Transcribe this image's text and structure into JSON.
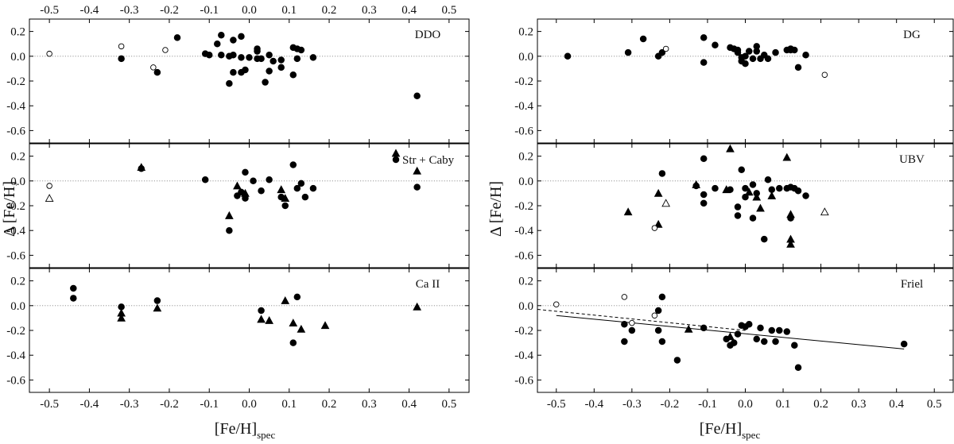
{
  "chart_data": {
    "type": "scatter",
    "title": "",
    "xlabel": "[Fe/H]",
    "xlabel_sub": "spec",
    "ylabel": "Δ [Fe/H]",
    "xlim": [
      -0.55,
      0.55
    ],
    "ylim": [
      -0.7,
      0.3
    ],
    "xticks": [
      -0.5,
      -0.4,
      -0.3,
      -0.2,
      -0.1,
      0.0,
      0.1,
      0.2,
      0.3,
      0.4,
      0.5
    ],
    "xtick_labels": [
      "-0.5",
      "-0.4",
      "-0.3",
      "-0.2",
      "-0.1",
      "0.0",
      "0.1",
      "0.2",
      "0.3",
      "0.4",
      "0.5"
    ],
    "yticks": [
      -0.6,
      -0.4,
      -0.2,
      0.0,
      0.2
    ],
    "ytick_labels": [
      "-0.6",
      "-0.4",
      "-0.2",
      "0.0",
      "0.2"
    ],
    "legend": {
      "triangle": "",
      "circle": "Str + Caby"
    },
    "panels": [
      {
        "id": "ddo",
        "label": "DDO",
        "column": "left",
        "row": 0,
        "series": [
          {
            "name": "filled-circle",
            "marker": "circle",
            "filled": true,
            "points": [
              [
                -0.32,
                -0.02
              ],
              [
                -0.23,
                -0.13
              ],
              [
                -0.18,
                0.15
              ],
              [
                -0.11,
                0.02
              ],
              [
                -0.1,
                0.01
              ],
              [
                -0.08,
                0.1
              ],
              [
                -0.07,
                0.17
              ],
              [
                -0.07,
                0.01
              ],
              [
                -0.05,
                0.0
              ],
              [
                -0.05,
                -0.22
              ],
              [
                -0.04,
                0.13
              ],
              [
                -0.04,
                0.01
              ],
              [
                -0.04,
                -0.13
              ],
              [
                -0.02,
                0.16
              ],
              [
                -0.02,
                -0.13
              ],
              [
                -0.02,
                -0.01
              ],
              [
                -0.01,
                -0.11
              ],
              [
                0.0,
                -0.01
              ],
              [
                0.02,
                0.06
              ],
              [
                0.02,
                0.04
              ],
              [
                0.02,
                -0.02
              ],
              [
                0.03,
                -0.02
              ],
              [
                0.04,
                -0.21
              ],
              [
                0.05,
                0.01
              ],
              [
                0.05,
                -0.12
              ],
              [
                0.06,
                -0.04
              ],
              [
                0.08,
                -0.03
              ],
              [
                0.08,
                -0.09
              ],
              [
                0.11,
                0.07
              ],
              [
                0.11,
                -0.15
              ],
              [
                0.12,
                0.06
              ],
              [
                0.12,
                -0.02
              ],
              [
                0.13,
                0.05
              ],
              [
                0.16,
                -0.01
              ],
              [
                0.42,
                -0.32
              ]
            ]
          },
          {
            "name": "open-circle",
            "marker": "circle",
            "filled": false,
            "points": [
              [
                -0.5,
                0.02
              ],
              [
                -0.32,
                0.08
              ],
              [
                -0.24,
                -0.09
              ],
              [
                -0.21,
                0.05
              ]
            ]
          }
        ]
      },
      {
        "id": "str-caby",
        "label": "Str + Caby",
        "column": "left",
        "row": 1,
        "series": [
          {
            "name": "filled-circle",
            "marker": "circle",
            "filled": true,
            "points": [
              [
                -0.27,
                0.1
              ],
              [
                -0.11,
                0.01
              ],
              [
                -0.05,
                -0.4
              ],
              [
                -0.03,
                -0.12
              ],
              [
                -0.02,
                -0.09
              ],
              [
                -0.01,
                0.07
              ],
              [
                -0.01,
                -0.14
              ],
              [
                0.01,
                0.0
              ],
              [
                0.03,
                -0.08
              ],
              [
                0.05,
                0.01
              ],
              [
                0.08,
                -0.13
              ],
              [
                0.09,
                -0.2
              ],
              [
                0.11,
                0.13
              ],
              [
                0.12,
                -0.06
              ],
              [
                0.13,
                -0.02
              ],
              [
                0.14,
                -0.13
              ],
              [
                0.16,
                -0.06
              ],
              [
                0.42,
                -0.05
              ]
            ]
          },
          {
            "name": "filled-triangle",
            "marker": "triangle",
            "filled": true,
            "points": [
              [
                -0.27,
                0.11
              ],
              [
                -0.05,
                -0.28
              ],
              [
                -0.03,
                -0.04
              ],
              [
                -0.01,
                -0.1
              ],
              [
                0.08,
                -0.07
              ],
              [
                0.09,
                -0.14
              ],
              [
                0.42,
                0.08
              ]
            ]
          },
          {
            "name": "open-circle",
            "marker": "circle",
            "filled": false,
            "points": [
              [
                -0.5,
                -0.04
              ]
            ]
          },
          {
            "name": "open-triangle",
            "marker": "triangle",
            "filled": false,
            "points": [
              [
                -0.5,
                -0.14
              ]
            ]
          }
        ]
      },
      {
        "id": "caii",
        "label": "Ca II",
        "column": "left",
        "row": 2,
        "series": [
          {
            "name": "filled-circle",
            "marker": "circle",
            "filled": true,
            "points": [
              [
                -0.44,
                0.14
              ],
              [
                -0.44,
                0.06
              ],
              [
                -0.32,
                -0.01
              ],
              [
                -0.23,
                0.04
              ],
              [
                0.03,
                -0.04
              ],
              [
                0.11,
                -0.3
              ],
              [
                0.12,
                0.07
              ]
            ]
          },
          {
            "name": "filled-triangle",
            "marker": "triangle",
            "filled": true,
            "points": [
              [
                -0.32,
                -0.06
              ],
              [
                -0.32,
                -0.1
              ],
              [
                -0.23,
                -0.02
              ],
              [
                0.03,
                -0.11
              ],
              [
                0.05,
                -0.12
              ],
              [
                0.09,
                0.04
              ],
              [
                0.11,
                -0.14
              ],
              [
                0.13,
                -0.19
              ],
              [
                0.19,
                -0.16
              ],
              [
                0.42,
                -0.01
              ]
            ]
          }
        ]
      },
      {
        "id": "dg",
        "label": "DG",
        "column": "right",
        "row": 0,
        "series": [
          {
            "name": "filled-circle",
            "marker": "circle",
            "filled": true,
            "points": [
              [
                -0.47,
                0.0
              ],
              [
                -0.31,
                0.03
              ],
              [
                -0.27,
                0.14
              ],
              [
                -0.23,
                0.0
              ],
              [
                -0.22,
                0.03
              ],
              [
                -0.11,
                0.15
              ],
              [
                -0.11,
                -0.05
              ],
              [
                -0.08,
                0.09
              ],
              [
                -0.04,
                0.07
              ],
              [
                -0.03,
                0.06
              ],
              [
                -0.02,
                0.05
              ],
              [
                -0.02,
                0.03
              ],
              [
                -0.01,
                -0.01
              ],
              [
                -0.01,
                -0.04
              ],
              [
                0.0,
                0.0
              ],
              [
                0.0,
                -0.06
              ],
              [
                0.01,
                0.04
              ],
              [
                0.02,
                -0.02
              ],
              [
                0.03,
                0.08
              ],
              [
                0.03,
                0.04
              ],
              [
                0.04,
                -0.02
              ],
              [
                0.05,
                0.01
              ],
              [
                0.06,
                -0.02
              ],
              [
                0.08,
                0.03
              ],
              [
                0.11,
                0.05
              ],
              [
                0.12,
                0.06
              ],
              [
                0.12,
                0.05
              ],
              [
                0.13,
                0.05
              ],
              [
                0.14,
                -0.09
              ],
              [
                0.16,
                0.01
              ]
            ]
          },
          {
            "name": "open-circle",
            "marker": "circle",
            "filled": false,
            "points": [
              [
                -0.21,
                0.06
              ],
              [
                0.21,
                -0.15
              ]
            ]
          }
        ]
      },
      {
        "id": "ubv",
        "label": "UBV",
        "column": "right",
        "row": 1,
        "series": [
          {
            "name": "filled-circle",
            "marker": "circle",
            "filled": true,
            "points": [
              [
                -0.22,
                0.06
              ],
              [
                -0.13,
                -0.04
              ],
              [
                -0.11,
                0.18
              ],
              [
                -0.11,
                -0.18
              ],
              [
                -0.11,
                -0.11
              ],
              [
                -0.08,
                -0.06
              ],
              [
                -0.04,
                -0.07
              ],
              [
                -0.02,
                -0.28
              ],
              [
                -0.02,
                -0.21
              ],
              [
                -0.01,
                0.09
              ],
              [
                0.0,
                -0.06
              ],
              [
                0.0,
                -0.13
              ],
              [
                0.02,
                -0.03
              ],
              [
                0.02,
                -0.3
              ],
              [
                0.03,
                -0.1
              ],
              [
                0.05,
                -0.47
              ],
              [
                0.06,
                0.01
              ],
              [
                0.07,
                -0.07
              ],
              [
                0.09,
                -0.06
              ],
              [
                0.11,
                -0.06
              ],
              [
                0.12,
                -0.05
              ],
              [
                0.12,
                -0.3
              ],
              [
                0.13,
                -0.06
              ],
              [
                0.14,
                -0.08
              ],
              [
                0.16,
                -0.12
              ]
            ]
          },
          {
            "name": "filled-triangle",
            "marker": "triangle",
            "filled": true,
            "points": [
              [
                -0.31,
                -0.25
              ],
              [
                -0.23,
                -0.1
              ],
              [
                -0.23,
                -0.35
              ],
              [
                -0.13,
                -0.03
              ],
              [
                -0.05,
                -0.07
              ],
              [
                -0.04,
                0.26
              ],
              [
                0.01,
                -0.09
              ],
              [
                0.03,
                -0.13
              ],
              [
                0.04,
                -0.22
              ],
              [
                0.07,
                -0.12
              ],
              [
                0.11,
                0.19
              ],
              [
                0.12,
                -0.27
              ],
              [
                0.12,
                -0.47
              ],
              [
                0.12,
                -0.51
              ]
            ]
          },
          {
            "name": "open-circle",
            "marker": "circle",
            "filled": false,
            "points": [
              [
                -0.24,
                -0.38
              ]
            ]
          },
          {
            "name": "open-triangle",
            "marker": "triangle",
            "filled": false,
            "points": [
              [
                -0.21,
                -0.18
              ],
              [
                0.21,
                -0.25
              ]
            ]
          }
        ]
      },
      {
        "id": "friel",
        "label": "Friel",
        "column": "right",
        "row": 2,
        "series": [
          {
            "name": "filled-circle",
            "marker": "circle",
            "filled": true,
            "points": [
              [
                -0.32,
                -0.29
              ],
              [
                -0.32,
                -0.15
              ],
              [
                -0.3,
                -0.2
              ],
              [
                -0.23,
                -0.04
              ],
              [
                -0.23,
                -0.2
              ],
              [
                -0.22,
                0.07
              ],
              [
                -0.22,
                -0.29
              ],
              [
                -0.18,
                -0.44
              ],
              [
                -0.11,
                -0.18
              ],
              [
                -0.05,
                -0.27
              ],
              [
                -0.04,
                -0.32
              ],
              [
                -0.03,
                -0.3
              ],
              [
                -0.02,
                -0.23
              ],
              [
                -0.01,
                -0.16
              ],
              [
                0.0,
                -0.17
              ],
              [
                0.01,
                -0.15
              ],
              [
                0.03,
                -0.27
              ],
              [
                0.04,
                -0.18
              ],
              [
                0.05,
                -0.29
              ],
              [
                0.07,
                -0.2
              ],
              [
                0.08,
                -0.29
              ],
              [
                0.09,
                -0.2
              ],
              [
                0.11,
                -0.21
              ],
              [
                0.13,
                -0.32
              ],
              [
                0.14,
                -0.5
              ],
              [
                0.42,
                -0.31
              ]
            ]
          },
          {
            "name": "filled-triangle",
            "marker": "triangle",
            "filled": true,
            "points": [
              [
                -0.15,
                -0.19
              ],
              [
                -0.04,
                -0.25
              ]
            ]
          },
          {
            "name": "open-circle",
            "marker": "circle",
            "filled": false,
            "points": [
              [
                -0.5,
                0.01
              ],
              [
                -0.32,
                0.07
              ],
              [
                -0.3,
                -0.14
              ],
              [
                -0.24,
                -0.08
              ]
            ]
          }
        ],
        "lines": [
          {
            "name": "solid-fit",
            "style": "solid",
            "points": [
              [
                -0.5,
                -0.08
              ],
              [
                0.42,
                -0.35
              ]
            ]
          },
          {
            "name": "dashed-fit",
            "style": "dashed",
            "points": [
              [
                -0.55,
                -0.03
              ],
              [
                0.0,
                -0.2
              ]
            ]
          }
        ]
      }
    ]
  }
}
